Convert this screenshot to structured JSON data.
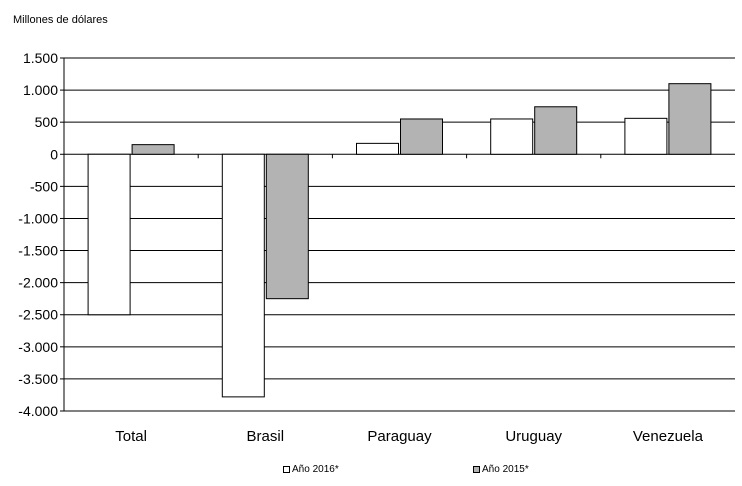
{
  "chart_data": {
    "type": "bar",
    "title": "",
    "ylabel": "Millones de dólares",
    "xlabel": "",
    "categories": [
      "Total",
      "Brasil",
      "Paraguay",
      "Uruguay",
      "Venezuela"
    ],
    "series": [
      {
        "name": "Año 2016*",
        "color": "#ffffff",
        "values": [
          -2500,
          -3780,
          170,
          550,
          560
        ]
      },
      {
        "name": "Año 2015*",
        "color": "#b3b3b3",
        "values": [
          150,
          -2250,
          550,
          740,
          1100
        ]
      }
    ],
    "ylim": [
      -4000,
      1500
    ],
    "yticks": [
      1500,
      1000,
      500,
      0,
      -500,
      -1000,
      -1500,
      -2000,
      -2500,
      -3000,
      -3500,
      -4000
    ],
    "ytick_labels": [
      "1.500",
      "1.000",
      "500",
      "0",
      "-500",
      "-1.000",
      "-1.500",
      "-2.000",
      "-2.500",
      "-3.000",
      "-3.500",
      "-4.000"
    ],
    "grid": true,
    "legend_position": "bottom"
  }
}
